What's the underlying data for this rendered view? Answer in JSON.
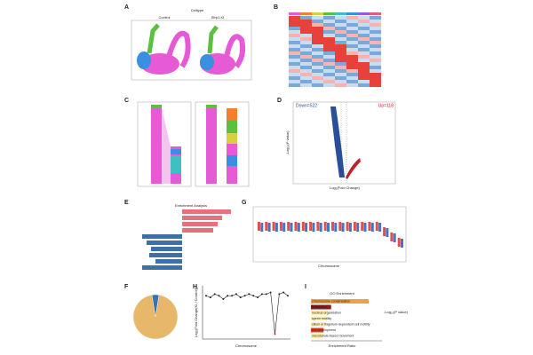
{
  "panels": {
    "A": {
      "letter": "A",
      "title": "Celltype",
      "groups": [
        "Control",
        "Sfrp1 KI"
      ]
    },
    "B": {
      "letter": "B"
    },
    "C": {
      "letter": "C"
    },
    "D": {
      "letter": "D",
      "down": "Down=522",
      "up": "Up=118",
      "x_label": "Log₂(Fold Change)",
      "y_label": "-Log₁₀(P value)"
    },
    "E": {
      "letter": "E",
      "title": "Enrichment Analysis"
    },
    "F": {
      "letter": "F",
      "values": [
        95,
        5
      ],
      "colors": [
        "#e8b86a",
        "#3b6fb6"
      ]
    },
    "G": {
      "letter": "G",
      "x_label": "Chromosome"
    },
    "H": {
      "letter": "H",
      "x_label": "Chromosome",
      "y_label": "Log₂(Fold Change(KI / Control))",
      "values": [
        -0.3,
        -0.35,
        -0.25,
        -0.3,
        -0.4,
        -0.3,
        -0.3,
        -0.25,
        -0.35,
        -0.3,
        -0.25,
        -0.3,
        -0.35,
        -0.25,
        -0.25,
        -0.2,
        -1.45,
        -0.25,
        -0.2,
        -0.3
      ],
      "ylim": [
        -1.6,
        0
      ]
    },
    "I": {
      "letter": "I",
      "title": "GO Enrichment",
      "x_label": "Enrichment Ratio",
      "legend": "-Log₁₀(P value)",
      "terms": [
        "chromosome condensation",
        "fertilization",
        "nucleus organization",
        "sperm motility",
        "cilium or flagellum-dependent cell motility",
        "cell development",
        "microtubule-based movement"
      ],
      "values": [
        1.0,
        0.35,
        0.3,
        0.28,
        0.25,
        0.22,
        0.2
      ],
      "colors": [
        "#f0a040",
        "#8b1a1a",
        "#fff2b0",
        "#fff2b0",
        "#fff2b0",
        "#e04020",
        "#fff2b0"
      ],
      "xlim": [
        0,
        1.2
      ]
    }
  }
}
